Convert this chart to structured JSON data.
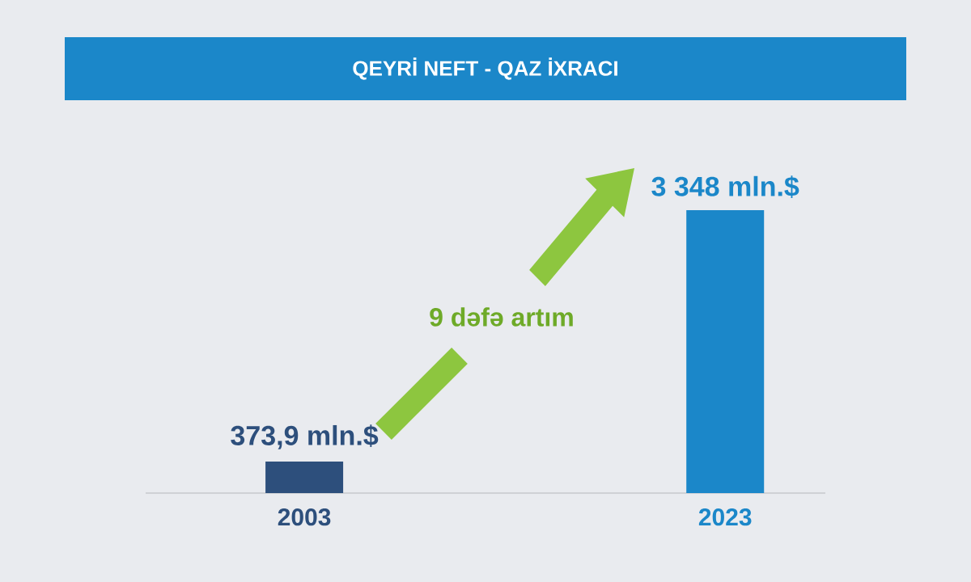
{
  "chart_data": {
    "type": "bar",
    "title": "QEYRİ NEFT - QAZ İXRACI",
    "categories": [
      "2003",
      "2023"
    ],
    "values": [
      373.9,
      3348
    ],
    "colors": [
      "#2d4f7c",
      "#1b87c9"
    ],
    "value_labels": [
      "373,9 mln.$",
      "3 348 mln.$"
    ],
    "annotations": [
      "9 dəfə artım"
    ]
  }
}
